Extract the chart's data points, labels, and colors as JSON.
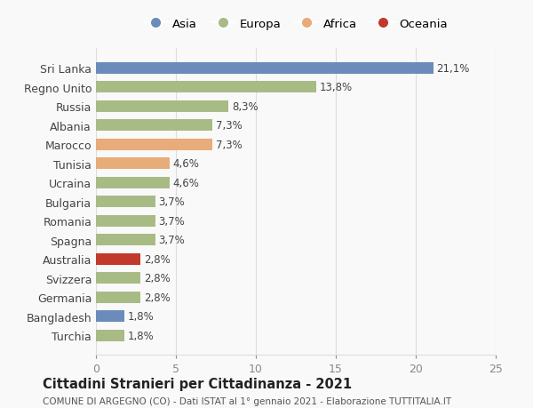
{
  "countries": [
    "Sri Lanka",
    "Regno Unito",
    "Russia",
    "Albania",
    "Marocco",
    "Tunisia",
    "Ucraina",
    "Bulgaria",
    "Romania",
    "Spagna",
    "Australia",
    "Svizzera",
    "Germania",
    "Bangladesh",
    "Turchia"
  ],
  "values": [
    21.1,
    13.8,
    8.3,
    7.3,
    7.3,
    4.6,
    4.6,
    3.7,
    3.7,
    3.7,
    2.8,
    2.8,
    2.8,
    1.8,
    1.8
  ],
  "labels": [
    "21,1%",
    "13,8%",
    "8,3%",
    "7,3%",
    "7,3%",
    "4,6%",
    "4,6%",
    "3,7%",
    "3,7%",
    "3,7%",
    "2,8%",
    "2,8%",
    "2,8%",
    "1,8%",
    "1,8%"
  ],
  "colors": [
    "#6b8cba",
    "#a8bb85",
    "#a8bb85",
    "#a8bb85",
    "#e8ab7a",
    "#e8ab7a",
    "#a8bb85",
    "#a8bb85",
    "#a8bb85",
    "#a8bb85",
    "#c0392b",
    "#a8bb85",
    "#a8bb85",
    "#6b8cba",
    "#a8bb85"
  ],
  "legend": [
    {
      "label": "Asia",
      "color": "#6b8cba"
    },
    {
      "label": "Europa",
      "color": "#a8bb85"
    },
    {
      "label": "Africa",
      "color": "#e8ab7a"
    },
    {
      "label": "Oceania",
      "color": "#c0392b"
    }
  ],
  "xlim": [
    0,
    25
  ],
  "xticks": [
    0,
    5,
    10,
    15,
    20,
    25
  ],
  "title": "Cittadini Stranieri per Cittadinanza - 2021",
  "subtitle": "COMUNE DI ARGEGNO (CO) - Dati ISTAT al 1° gennaio 2021 - Elaborazione TUTTITALIA.IT",
  "bg_color": "#f9f9f9",
  "grid_color": "#dddddd",
  "bar_height": 0.6
}
